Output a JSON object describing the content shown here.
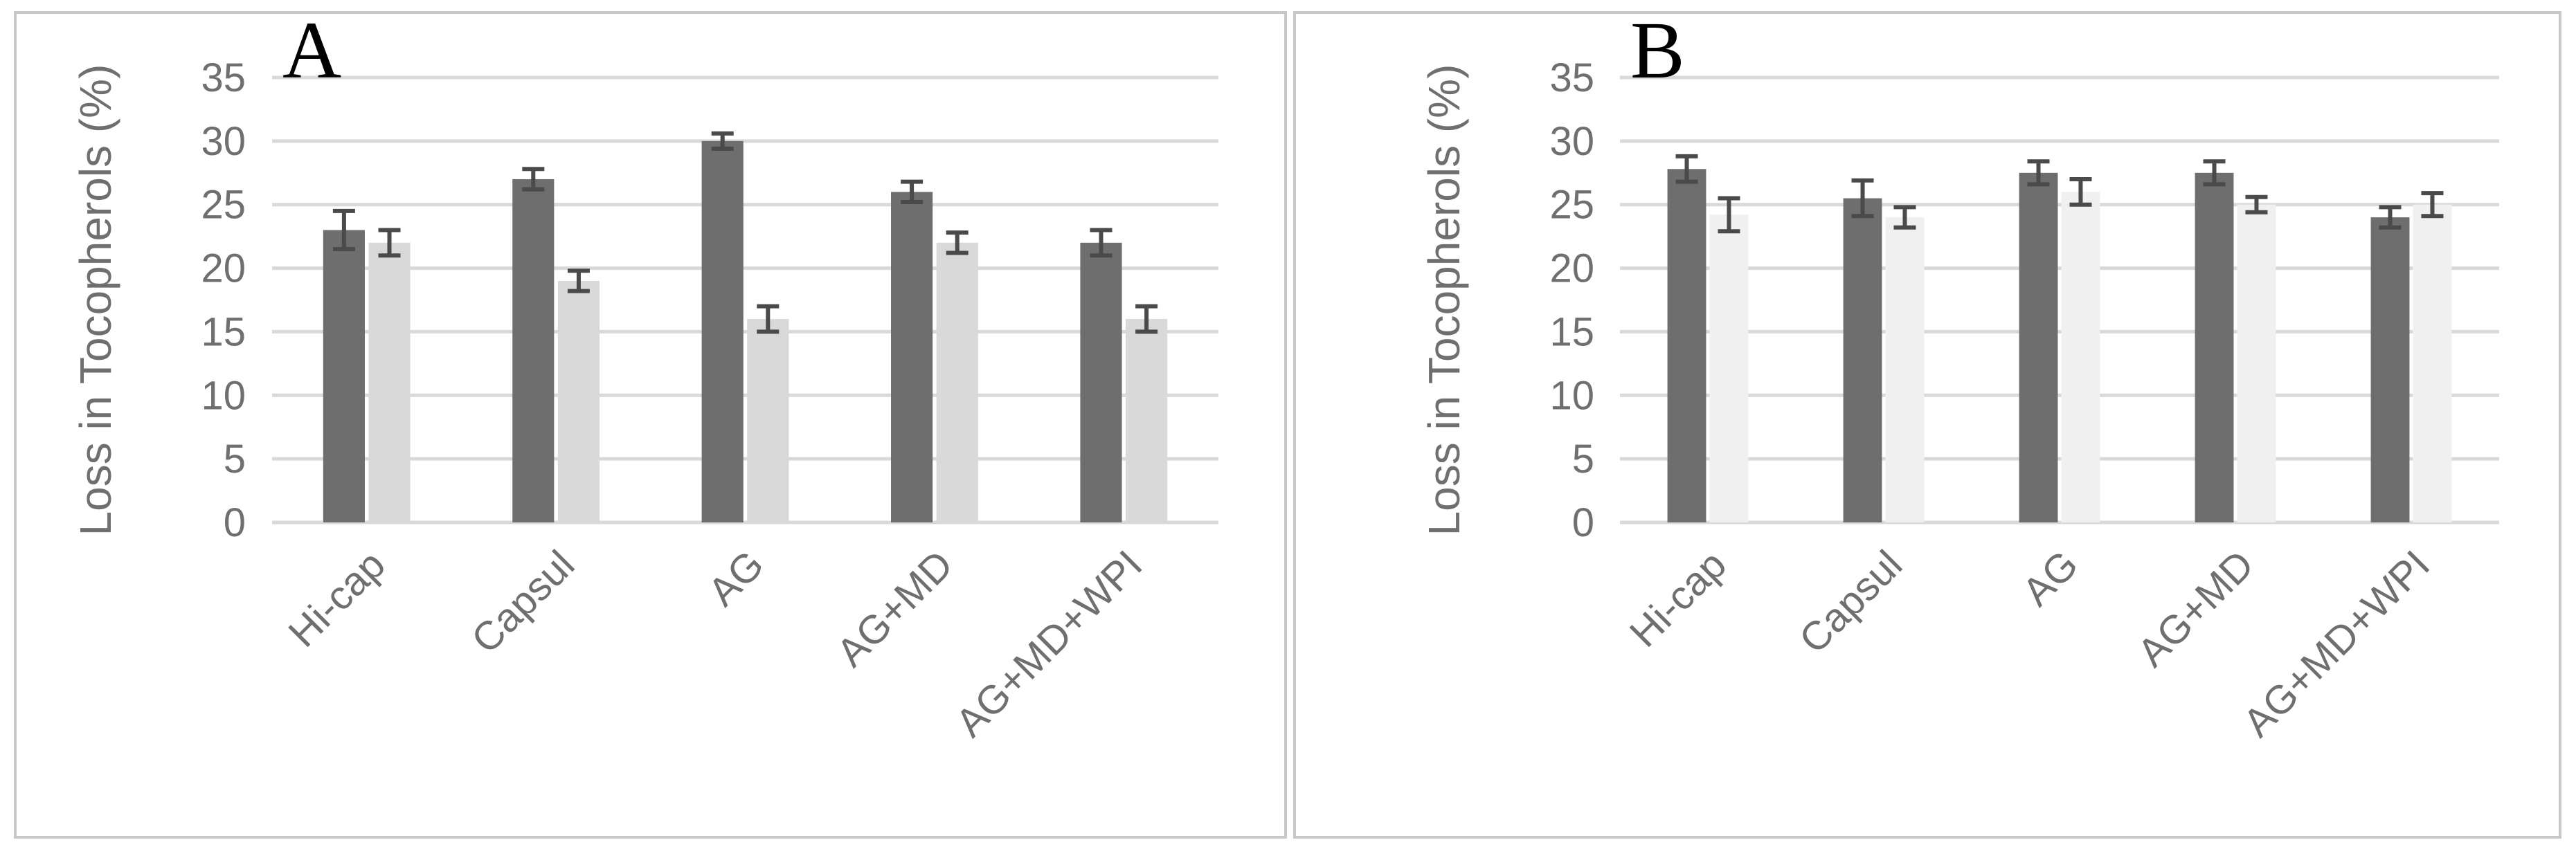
{
  "chart_data": [
    {
      "type": "bar",
      "panel_label": "A",
      "ylabel": "Loss in Tocopherols (%)",
      "ylim": [
        0,
        35
      ],
      "yticks": [
        0,
        5,
        10,
        15,
        20,
        25,
        30,
        35
      ],
      "grid": true,
      "categories": [
        "Hi-cap",
        "Capsul",
        "AG",
        "AG+MD",
        "AG+MD+WPI"
      ],
      "series": [
        {
          "values": [
            23,
            27,
            30,
            26,
            22
          ],
          "errors": [
            1.5,
            0.8,
            0.6,
            0.8,
            1.0
          ],
          "color": "#6e6e6e"
        },
        {
          "values": [
            22,
            19,
            16,
            22,
            16
          ],
          "errors": [
            1.0,
            0.8,
            1.0,
            0.8,
            1.0
          ],
          "color": "#d9d9d9"
        }
      ]
    },
    {
      "type": "bar",
      "panel_label": "B",
      "ylabel": "Loss in Tocopherols (%)",
      "ylim": [
        0,
        35
      ],
      "yticks": [
        0,
        5,
        10,
        15,
        20,
        25,
        30,
        35
      ],
      "grid": true,
      "categories": [
        "Hi-cap",
        "Capsul",
        "AG",
        "AG+MD",
        "AG+MD+WPI"
      ],
      "series": [
        {
          "values": [
            27.8,
            25.5,
            27.5,
            27.5,
            24
          ],
          "errors": [
            1.0,
            1.4,
            0.9,
            0.9,
            0.8
          ],
          "color": "#6e6e6e"
        },
        {
          "values": [
            24.2,
            24,
            26,
            25,
            25
          ],
          "errors": [
            1.3,
            0.8,
            1.0,
            0.6,
            0.9
          ],
          "color": "#f0f0f0"
        }
      ]
    }
  ]
}
